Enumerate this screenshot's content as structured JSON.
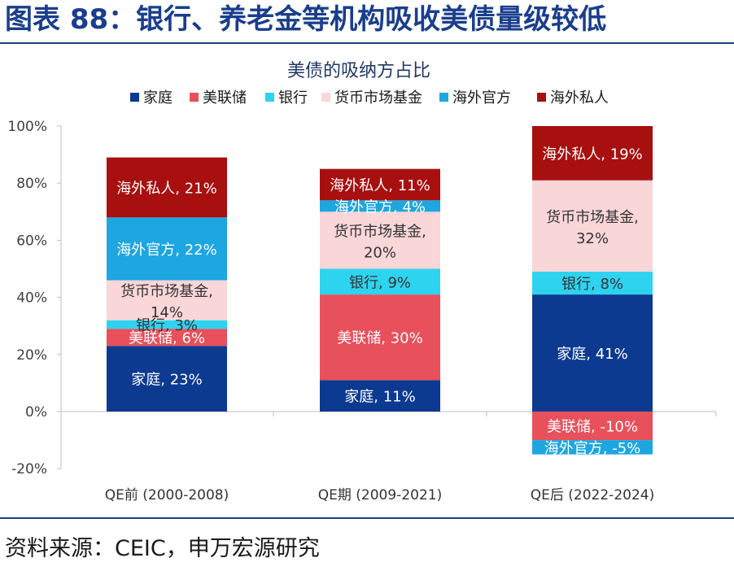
{
  "figure_title": "图表 88：银行、养老金等机构吸收美债量级较低",
  "source": "资料来源：CEIC，申万宏源研究",
  "chart_data": {
    "type": "bar",
    "stacked": true,
    "title": "美债的吸纳方占比",
    "categories": [
      "QE前 (2000-2008)",
      "QE期 (2009-2021)",
      "QE后 (2022-2024)"
    ],
    "ylim": [
      -20,
      100
    ],
    "yticks": [
      -20,
      0,
      20,
      40,
      60,
      80,
      100
    ],
    "ytick_labels": [
      "-20%",
      "0%",
      "20%",
      "40%",
      "60%",
      "80%",
      "100%"
    ],
    "legend_position": "top",
    "series": [
      {
        "name": "家庭",
        "color": "#0c3a91",
        "values": [
          23,
          11,
          41
        ],
        "labels": [
          "家庭, 23%",
          "家庭, 11%",
          "家庭, 41%"
        ]
      },
      {
        "name": "美联储",
        "color": "#e8505b",
        "values": [
          6,
          30,
          -10
        ],
        "labels": [
          "美联储, 6%",
          "美联储, 30%",
          "美联储, -10%"
        ]
      },
      {
        "name": "银行",
        "color": "#2ed3ef",
        "values": [
          3,
          9,
          8
        ],
        "labels": [
          "银行, 3%",
          "银行, 9%",
          "银行, 8%"
        ]
      },
      {
        "name": "货币市场基金",
        "color": "#f9d6d8",
        "values": [
          14,
          20,
          32
        ],
        "labels": [
          "货币市场基金, 14%",
          "货币市场基金, 20%",
          "货币市场基金, 32%"
        ]
      },
      {
        "name": "海外官方",
        "color": "#1da6e0",
        "values": [
          22,
          4,
          -5
        ],
        "labels": [
          "海外官方, 22%",
          "海外官方, 4%",
          "海外官方, -5%"
        ]
      },
      {
        "name": "海外私人",
        "color": "#a80f0f",
        "values": [
          21,
          11,
          19
        ],
        "labels": [
          "海外私人, 21%",
          "海外私人, 11%",
          "海外私人, 19%"
        ]
      }
    ]
  }
}
